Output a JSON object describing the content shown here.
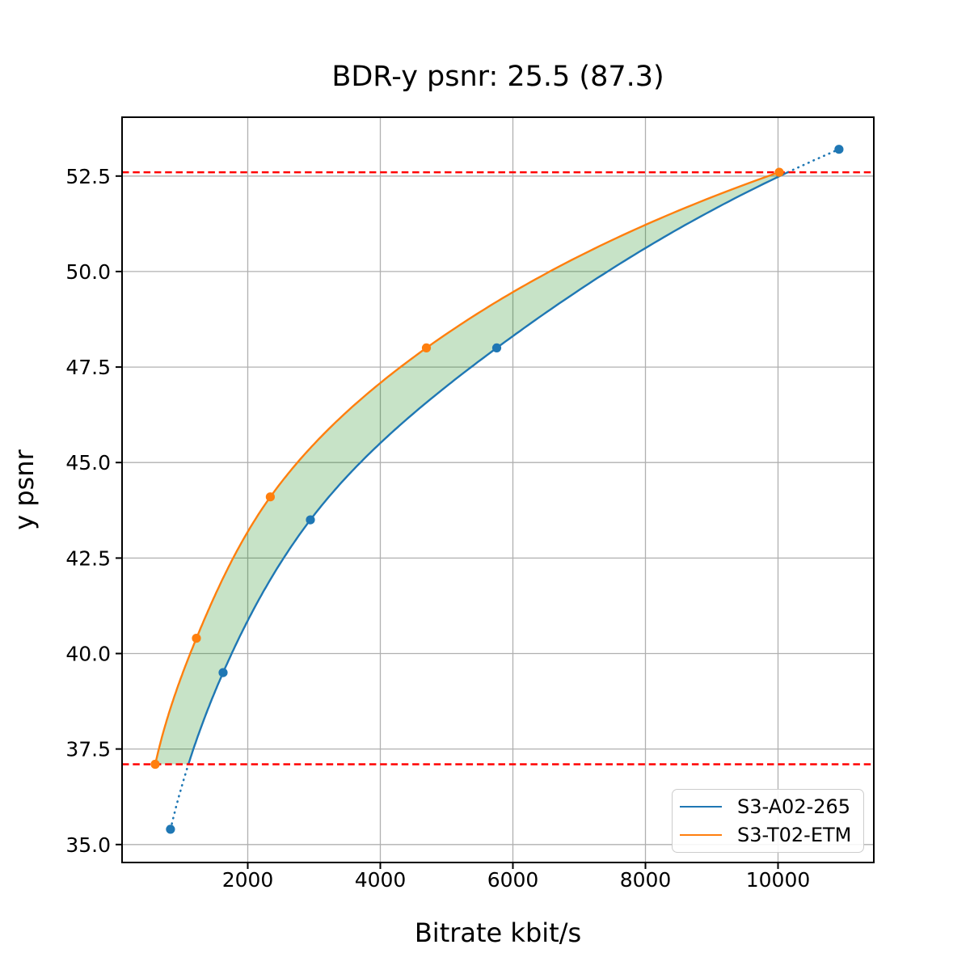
{
  "chart_data": {
    "type": "line",
    "title": "BDR-y psnr: 25.5 (87.3)",
    "xlabel": "Bitrate kbit/s",
    "ylabel": "y psnr",
    "xlim": [
      104,
      11445
    ],
    "ylim": [
      34.53,
      54.04
    ],
    "grid": true,
    "xticks": {
      "values": [
        2000,
        4000,
        6000,
        8000,
        10000
      ],
      "labels": [
        "2000",
        "4000",
        "6000",
        "8000",
        "10000"
      ]
    },
    "yticks": {
      "values": [
        35.0,
        37.5,
        40.0,
        42.5,
        45.0,
        47.5,
        50.0,
        52.5
      ],
      "labels": [
        "35.0",
        "37.5",
        "40.0",
        "42.5",
        "45.0",
        "47.5",
        "50.0",
        "52.5"
      ]
    },
    "series": [
      {
        "name": "S3-A02-265",
        "color": "#1f77b4",
        "points": [
          [
            835,
            35.4
          ],
          [
            1628,
            39.5
          ],
          [
            2945,
            43.5
          ],
          [
            5756,
            48.0
          ],
          [
            10920,
            53.2
          ]
        ]
      },
      {
        "name": "S3-T02-ETM",
        "color": "#ff7f0e",
        "points": [
          [
            604,
            37.1
          ],
          [
            1226,
            40.4
          ],
          [
            2341,
            44.1
          ],
          [
            4695,
            48.0
          ],
          [
            10018,
            52.6
          ]
        ]
      }
    ],
    "overlap_hlines": {
      "values": [
        37.1,
        52.6
      ],
      "color": "#ff0000",
      "style": "dashed"
    },
    "fill_between": {
      "upper_series": "S3-T02-ETM",
      "lower_series": "S3-A02-265",
      "y_range": [
        37.1,
        52.6
      ],
      "color": "#008000",
      "opacity": 0.22
    },
    "legend_position": "lower right",
    "colors": {
      "grid": "#b0b0b0",
      "spine": "#000000",
      "text": "#000000",
      "background": "#ffffff"
    }
  }
}
